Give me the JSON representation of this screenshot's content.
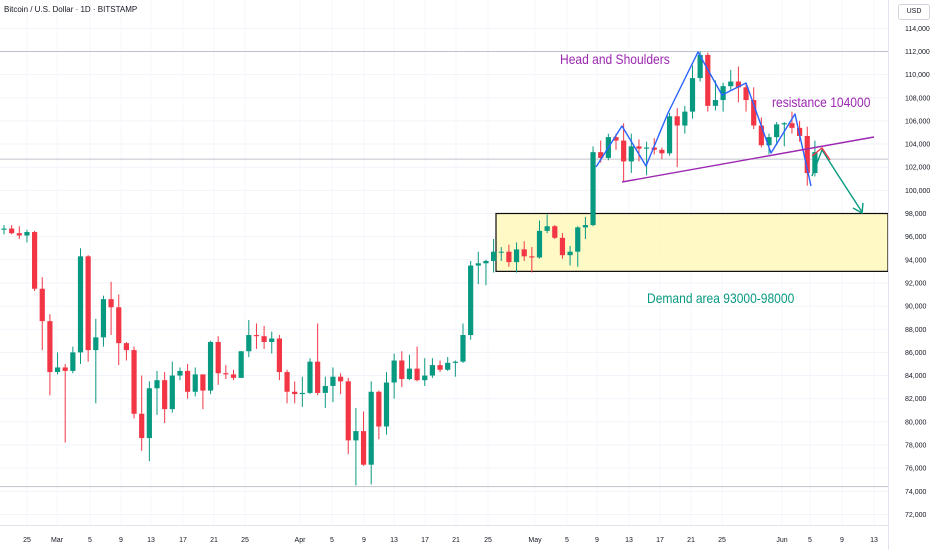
{
  "header": {
    "symbol_line": "Bitcoin / U.S. Dollar · 1D · BITSTAMP",
    "currency": "USD"
  },
  "colors": {
    "up": "#089981",
    "down": "#f23645",
    "purple": "#9c27b0",
    "blue": "#2962ff",
    "teal": "#089981",
    "zone_fill": "#fff9c4",
    "zone_border": "#000000",
    "hline": "#b2b5be"
  },
  "annotations": {
    "head_and_shoulders": "Head and Shoulders",
    "resistance": "resistance 104000",
    "demand": "Demand area 93000-98000"
  },
  "chart_data": {
    "type": "candlestick",
    "x_axis_labels": [
      "25",
      "Mar",
      "5",
      "9",
      "13",
      "17",
      "21",
      "25",
      "Apr",
      "5",
      "9",
      "13",
      "17",
      "21",
      "25",
      "May",
      "5",
      "9",
      "13",
      "17",
      "21",
      "25",
      "Jun",
      "5",
      "9",
      "13"
    ],
    "y_axis_ticks": [
      72000,
      74000,
      76000,
      78000,
      80000,
      82000,
      84000,
      86000,
      88000,
      90000,
      92000,
      94000,
      96000,
      98000,
      100000,
      102000,
      104000,
      106000,
      108000,
      110000,
      112000,
      114000
    ],
    "ylim": [
      71000,
      115500
    ],
    "demand_zone": [
      93000,
      98000
    ],
    "resistance_level": 104000,
    "horizontal_levels": [
      112000,
      102700,
      74400
    ],
    "series": [
      {
        "date": "Feb 20",
        "o": 96600,
        "h": 97000,
        "l": 96200,
        "c": 96700
      },
      {
        "date": "Feb 21",
        "o": 96700,
        "h": 97000,
        "l": 96200,
        "c": 96300
      },
      {
        "date": "Feb 22",
        "o": 96300,
        "h": 96900,
        "l": 95800,
        "c": 96100
      },
      {
        "date": "Feb 23",
        "o": 96100,
        "h": 96600,
        "l": 95500,
        "c": 96400
      },
      {
        "date": "Feb 24",
        "o": 96400,
        "h": 96500,
        "l": 91300,
        "c": 91500
      },
      {
        "date": "Feb 25",
        "o": 91500,
        "h": 92500,
        "l": 86200,
        "c": 88700
      },
      {
        "date": "Feb 26",
        "o": 88700,
        "h": 89300,
        "l": 82300,
        "c": 84300
      },
      {
        "date": "Feb 27",
        "o": 84300,
        "h": 86000,
        "l": 84100,
        "c": 84700
      },
      {
        "date": "Feb 28",
        "o": 84700,
        "h": 85000,
        "l": 78200,
        "c": 84400
      },
      {
        "date": "Mar 1",
        "o": 84400,
        "h": 86500,
        "l": 84200,
        "c": 86000
      },
      {
        "date": "Mar 2",
        "o": 86000,
        "h": 95000,
        "l": 85000,
        "c": 94300
      },
      {
        "date": "Mar 3",
        "o": 94300,
        "h": 94400,
        "l": 85200,
        "c": 86200
      },
      {
        "date": "Mar 4",
        "o": 86200,
        "h": 88900,
        "l": 81600,
        "c": 87300
      },
      {
        "date": "Mar 5",
        "o": 87300,
        "h": 90900,
        "l": 86500,
        "c": 90600
      },
      {
        "date": "Mar 6",
        "o": 90600,
        "h": 92100,
        "l": 87500,
        "c": 89900
      },
      {
        "date": "Mar 7",
        "o": 89900,
        "h": 91000,
        "l": 84900,
        "c": 86800
      },
      {
        "date": "Mar 8",
        "o": 86800,
        "h": 86900,
        "l": 85300,
        "c": 86200
      },
      {
        "date": "Mar 9",
        "o": 86200,
        "h": 86500,
        "l": 80300,
        "c": 80700
      },
      {
        "date": "Mar 10",
        "o": 80700,
        "h": 84000,
        "l": 77500,
        "c": 78600
      },
      {
        "date": "Mar 11",
        "o": 78600,
        "h": 83500,
        "l": 76600,
        "c": 82900
      },
      {
        "date": "Mar 12",
        "o": 82900,
        "h": 84400,
        "l": 80600,
        "c": 83600
      },
      {
        "date": "Mar 13",
        "o": 83600,
        "h": 84300,
        "l": 79900,
        "c": 81100
      },
      {
        "date": "Mar 14",
        "o": 81100,
        "h": 85200,
        "l": 80800,
        "c": 84000
      },
      {
        "date": "Mar 15",
        "o": 84000,
        "h": 84700,
        "l": 83600,
        "c": 84400
      },
      {
        "date": "Mar 16",
        "o": 84400,
        "h": 85000,
        "l": 82000,
        "c": 82600
      },
      {
        "date": "Mar 17",
        "o": 82600,
        "h": 84700,
        "l": 82200,
        "c": 84100
      },
      {
        "date": "Mar 18",
        "o": 84100,
        "h": 84100,
        "l": 81100,
        "c": 82700
      },
      {
        "date": "Mar 19",
        "o": 82700,
        "h": 87000,
        "l": 82400,
        "c": 86900
      },
      {
        "date": "Mar 20",
        "o": 86900,
        "h": 87400,
        "l": 83200,
        "c": 84200
      },
      {
        "date": "Mar 21",
        "o": 84200,
        "h": 84900,
        "l": 83700,
        "c": 84100
      },
      {
        "date": "Mar 22",
        "o": 84100,
        "h": 84500,
        "l": 83600,
        "c": 83800
      },
      {
        "date": "Mar 23",
        "o": 83800,
        "h": 86100,
        "l": 83800,
        "c": 86100
      },
      {
        "date": "Mar 24",
        "o": 86100,
        "h": 88800,
        "l": 85600,
        "c": 87500
      },
      {
        "date": "Mar 25",
        "o": 87500,
        "h": 88500,
        "l": 86300,
        "c": 87400
      },
      {
        "date": "Mar 26",
        "o": 87400,
        "h": 88300,
        "l": 86300,
        "c": 86900
      },
      {
        "date": "Mar 27",
        "o": 86900,
        "h": 87800,
        "l": 85900,
        "c": 87200
      },
      {
        "date": "Mar 28",
        "o": 87200,
        "h": 87500,
        "l": 83600,
        "c": 84300
      },
      {
        "date": "Mar 29",
        "o": 84300,
        "h": 84500,
        "l": 81600,
        "c": 82600
      },
      {
        "date": "Mar 30",
        "o": 82600,
        "h": 83500,
        "l": 81600,
        "c": 82400
      },
      {
        "date": "Mar 31",
        "o": 82400,
        "h": 83900,
        "l": 81300,
        "c": 82500
      },
      {
        "date": "Apr 1",
        "o": 82500,
        "h": 85500,
        "l": 82400,
        "c": 85200
      },
      {
        "date": "Apr 2",
        "o": 85200,
        "h": 88500,
        "l": 82300,
        "c": 82500
      },
      {
        "date": "Apr 3",
        "o": 82500,
        "h": 83900,
        "l": 81200,
        "c": 83100
      },
      {
        "date": "Apr 4",
        "o": 83100,
        "h": 84700,
        "l": 81700,
        "c": 83900
      },
      {
        "date": "Apr 5",
        "o": 83900,
        "h": 84200,
        "l": 82400,
        "c": 83500
      },
      {
        "date": "Apr 6",
        "o": 83500,
        "h": 83800,
        "l": 77200,
        "c": 78400
      },
      {
        "date": "Apr 7",
        "o": 78400,
        "h": 81200,
        "l": 74500,
        "c": 79200
      },
      {
        "date": "Apr 8",
        "o": 79200,
        "h": 80900,
        "l": 76200,
        "c": 76300
      },
      {
        "date": "Apr 9",
        "o": 76300,
        "h": 83500,
        "l": 74600,
        "c": 82600
      },
      {
        "date": "Apr 10",
        "o": 82600,
        "h": 82700,
        "l": 78500,
        "c": 79600
      },
      {
        "date": "Apr 11",
        "o": 79600,
        "h": 84300,
        "l": 78900,
        "c": 83400
      },
      {
        "date": "Apr 12",
        "o": 83400,
        "h": 85900,
        "l": 82000,
        "c": 85300
      },
      {
        "date": "Apr 13",
        "o": 85300,
        "h": 86100,
        "l": 83000,
        "c": 83700
      },
      {
        "date": "Apr 14",
        "o": 83700,
        "h": 85800,
        "l": 83600,
        "c": 84600
      },
      {
        "date": "Apr 15",
        "o": 84600,
        "h": 86500,
        "l": 83500,
        "c": 83600
      },
      {
        "date": "Apr 16",
        "o": 83600,
        "h": 85500,
        "l": 83100,
        "c": 84000
      },
      {
        "date": "Apr 17",
        "o": 84000,
        "h": 85500,
        "l": 83800,
        "c": 84900
      },
      {
        "date": "Apr 18",
        "o": 84900,
        "h": 85300,
        "l": 84300,
        "c": 84500
      },
      {
        "date": "Apr 19",
        "o": 84500,
        "h": 85600,
        "l": 84400,
        "c": 85100
      },
      {
        "date": "Apr 20",
        "o": 85100,
        "h": 85300,
        "l": 83900,
        "c": 85200
      },
      {
        "date": "Apr 21",
        "o": 85200,
        "h": 88500,
        "l": 85100,
        "c": 87500
      },
      {
        "date": "Apr 22",
        "o": 87500,
        "h": 93900,
        "l": 87100,
        "c": 93500
      },
      {
        "date": "Apr 23",
        "o": 93500,
        "h": 94700,
        "l": 91900,
        "c": 93700
      },
      {
        "date": "Apr 24",
        "o": 93700,
        "h": 94000,
        "l": 91800,
        "c": 93900
      },
      {
        "date": "Apr 25",
        "o": 93900,
        "h": 95800,
        "l": 92900,
        "c": 94700
      },
      {
        "date": "Apr 26",
        "o": 94700,
        "h": 95100,
        "l": 93900,
        "c": 94700
      },
      {
        "date": "Apr 27",
        "o": 94700,
        "h": 95300,
        "l": 93400,
        "c": 93800
      },
      {
        "date": "Apr 28",
        "o": 93800,
        "h": 95500,
        "l": 92900,
        "c": 94900
      },
      {
        "date": "Apr 29",
        "o": 94900,
        "h": 95600,
        "l": 93900,
        "c": 94300
      },
      {
        "date": "Apr 30",
        "o": 94300,
        "h": 95100,
        "l": 92900,
        "c": 94200
      },
      {
        "date": "May 1",
        "o": 94200,
        "h": 97400,
        "l": 94100,
        "c": 96500
      },
      {
        "date": "May 2",
        "o": 96500,
        "h": 97900,
        "l": 96300,
        "c": 96900
      },
      {
        "date": "May 3",
        "o": 96900,
        "h": 97000,
        "l": 95800,
        "c": 95900
      },
      {
        "date": "May 4",
        "o": 95900,
        "h": 96300,
        "l": 94100,
        "c": 94400
      },
      {
        "date": "May 5",
        "o": 94400,
        "h": 95200,
        "l": 93500,
        "c": 94700
      },
      {
        "date": "May 6",
        "o": 94700,
        "h": 96900,
        "l": 93400,
        "c": 96800
      },
      {
        "date": "May 7",
        "o": 96800,
        "h": 97700,
        "l": 95800,
        "c": 97000
      },
      {
        "date": "May 8",
        "o": 97000,
        "h": 103800,
        "l": 96900,
        "c": 103300
      },
      {
        "date": "May 9",
        "o": 103300,
        "h": 104300,
        "l": 102400,
        "c": 102800
      },
      {
        "date": "May 10",
        "o": 102800,
        "h": 104900,
        "l": 102600,
        "c": 104600
      },
      {
        "date": "May 11",
        "o": 104600,
        "h": 104900,
        "l": 103500,
        "c": 104300
      },
      {
        "date": "May 12",
        "o": 104300,
        "h": 105800,
        "l": 100800,
        "c": 102500
      },
      {
        "date": "May 13",
        "o": 102500,
        "h": 104900,
        "l": 101500,
        "c": 103800
      },
      {
        "date": "May 14",
        "o": 103800,
        "h": 104400,
        "l": 102500,
        "c": 103600
      },
      {
        "date": "May 15",
        "o": 103600,
        "h": 104200,
        "l": 101300,
        "c": 103700
      },
      {
        "date": "May 16",
        "o": 103700,
        "h": 104500,
        "l": 103100,
        "c": 103500
      },
      {
        "date": "May 17",
        "o": 103500,
        "h": 103700,
        "l": 102700,
        "c": 103200
      },
      {
        "date": "May 18",
        "o": 103200,
        "h": 106700,
        "l": 103000,
        "c": 106400
      },
      {
        "date": "May 19",
        "o": 106400,
        "h": 107100,
        "l": 102000,
        "c": 105600
      },
      {
        "date": "May 20",
        "o": 105600,
        "h": 107300,
        "l": 104900,
        "c": 106800
      },
      {
        "date": "May 21",
        "o": 106800,
        "h": 110800,
        "l": 106200,
        "c": 109700
      },
      {
        "date": "May 22",
        "o": 109700,
        "h": 112000,
        "l": 109400,
        "c": 111700
      },
      {
        "date": "May 23",
        "o": 111700,
        "h": 111900,
        "l": 106800,
        "c": 107300
      },
      {
        "date": "May 24",
        "o": 107300,
        "h": 109500,
        "l": 106900,
        "c": 107800
      },
      {
        "date": "May 25",
        "o": 107800,
        "h": 109300,
        "l": 106800,
        "c": 109000
      },
      {
        "date": "May 26",
        "o": 109000,
        "h": 110400,
        "l": 108700,
        "c": 109400
      },
      {
        "date": "May 27",
        "o": 109400,
        "h": 110700,
        "l": 107600,
        "c": 108900
      },
      {
        "date": "May 28",
        "o": 108900,
        "h": 109300,
        "l": 106800,
        "c": 107800
      },
      {
        "date": "May 29",
        "o": 107800,
        "h": 108900,
        "l": 105300,
        "c": 105600
      },
      {
        "date": "May 30",
        "o": 105600,
        "h": 106300,
        "l": 103700,
        "c": 103900
      },
      {
        "date": "May 31",
        "o": 103900,
        "h": 104900,
        "l": 103100,
        "c": 104600
      },
      {
        "date": "Jun 1",
        "o": 104600,
        "h": 105900,
        "l": 103900,
        "c": 105700
      },
      {
        "date": "Jun 2",
        "o": 105700,
        "h": 105900,
        "l": 103800,
        "c": 105800
      },
      {
        "date": "Jun 3",
        "o": 105800,
        "h": 106800,
        "l": 104900,
        "c": 105400
      },
      {
        "date": "Jun 4",
        "o": 105400,
        "h": 106000,
        "l": 104200,
        "c": 104700
      },
      {
        "date": "Jun 5",
        "o": 104700,
        "h": 105500,
        "l": 100400,
        "c": 101500
      },
      {
        "date": "Jun 6",
        "o": 101500,
        "h": 104300,
        "l": 101200,
        "c": 103300
      }
    ]
  }
}
